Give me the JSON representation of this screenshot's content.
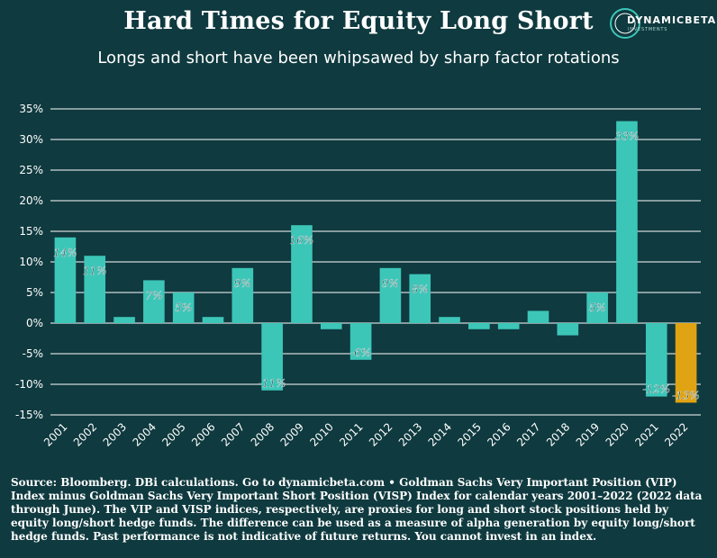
{
  "header": {
    "title": "Hard Times for Equity Long Short",
    "subtitle": "Longs and short have been whipsawed by sharp factor rotations"
  },
  "logo": {
    "name": "DYNAMICBETA",
    "tagline": "INVESTMENTS",
    "icon": "dynamicbeta-logo-icon"
  },
  "colors": {
    "background": "#0f3a3f",
    "bar": "#3cc6b8",
    "highlight": "#e0a313",
    "grid": "#ffffff",
    "label_text": "#1a4a4a"
  },
  "chart_data": {
    "type": "bar",
    "categories": [
      "2001",
      "2002",
      "2003",
      "2004",
      "2005",
      "2006",
      "2007",
      "2008",
      "2009",
      "2010",
      "2011",
      "2012",
      "2013",
      "2014",
      "2015",
      "2016",
      "2017",
      "2018",
      "2019",
      "2020",
      "2021",
      "2022"
    ],
    "values": [
      14,
      11,
      1,
      7,
      5,
      1,
      9,
      -11,
      16,
      -1,
      -6,
      9,
      8,
      1,
      -1,
      -1,
      2,
      -2,
      5,
      33,
      -12,
      -13
    ],
    "data_labels": [
      "14%",
      "11%",
      "",
      "7%",
      "5%",
      "",
      "9%",
      "-11%",
      "16%",
      "",
      "-6%",
      "9%",
      "8%",
      "",
      "",
      "",
      "",
      "",
      "5%",
      "33%",
      "-12%",
      "-13%"
    ],
    "highlight_index": 21,
    "ylim": [
      -15,
      35
    ],
    "yticks": [
      -15,
      -10,
      -5,
      0,
      5,
      10,
      15,
      20,
      25,
      30,
      35
    ],
    "ytick_labels": [
      "-15%",
      "-10%",
      "-5%",
      "0%",
      "5%",
      "10%",
      "15%",
      "20%",
      "25%",
      "30%",
      "35%"
    ],
    "grid": true,
    "xlabel": "",
    "ylabel": ""
  },
  "footer": {
    "text": "Source: Bloomberg.  DBi calculations. Go to dynamicbeta.com • Goldman Sachs Very Important Position (VIP) Index minus Goldman Sachs Very Important Short Position (VISP) Index for calendar years 2001–2022 (2022 data through June). The VIP and VISP indices, respectively, are proxies for long and short stock positions held by equity long/short hedge funds. The difference can be used as a measure of alpha generation by equity long/short hedge funds. Past performance is not indicative of future returns. You cannot invest in an index."
  }
}
